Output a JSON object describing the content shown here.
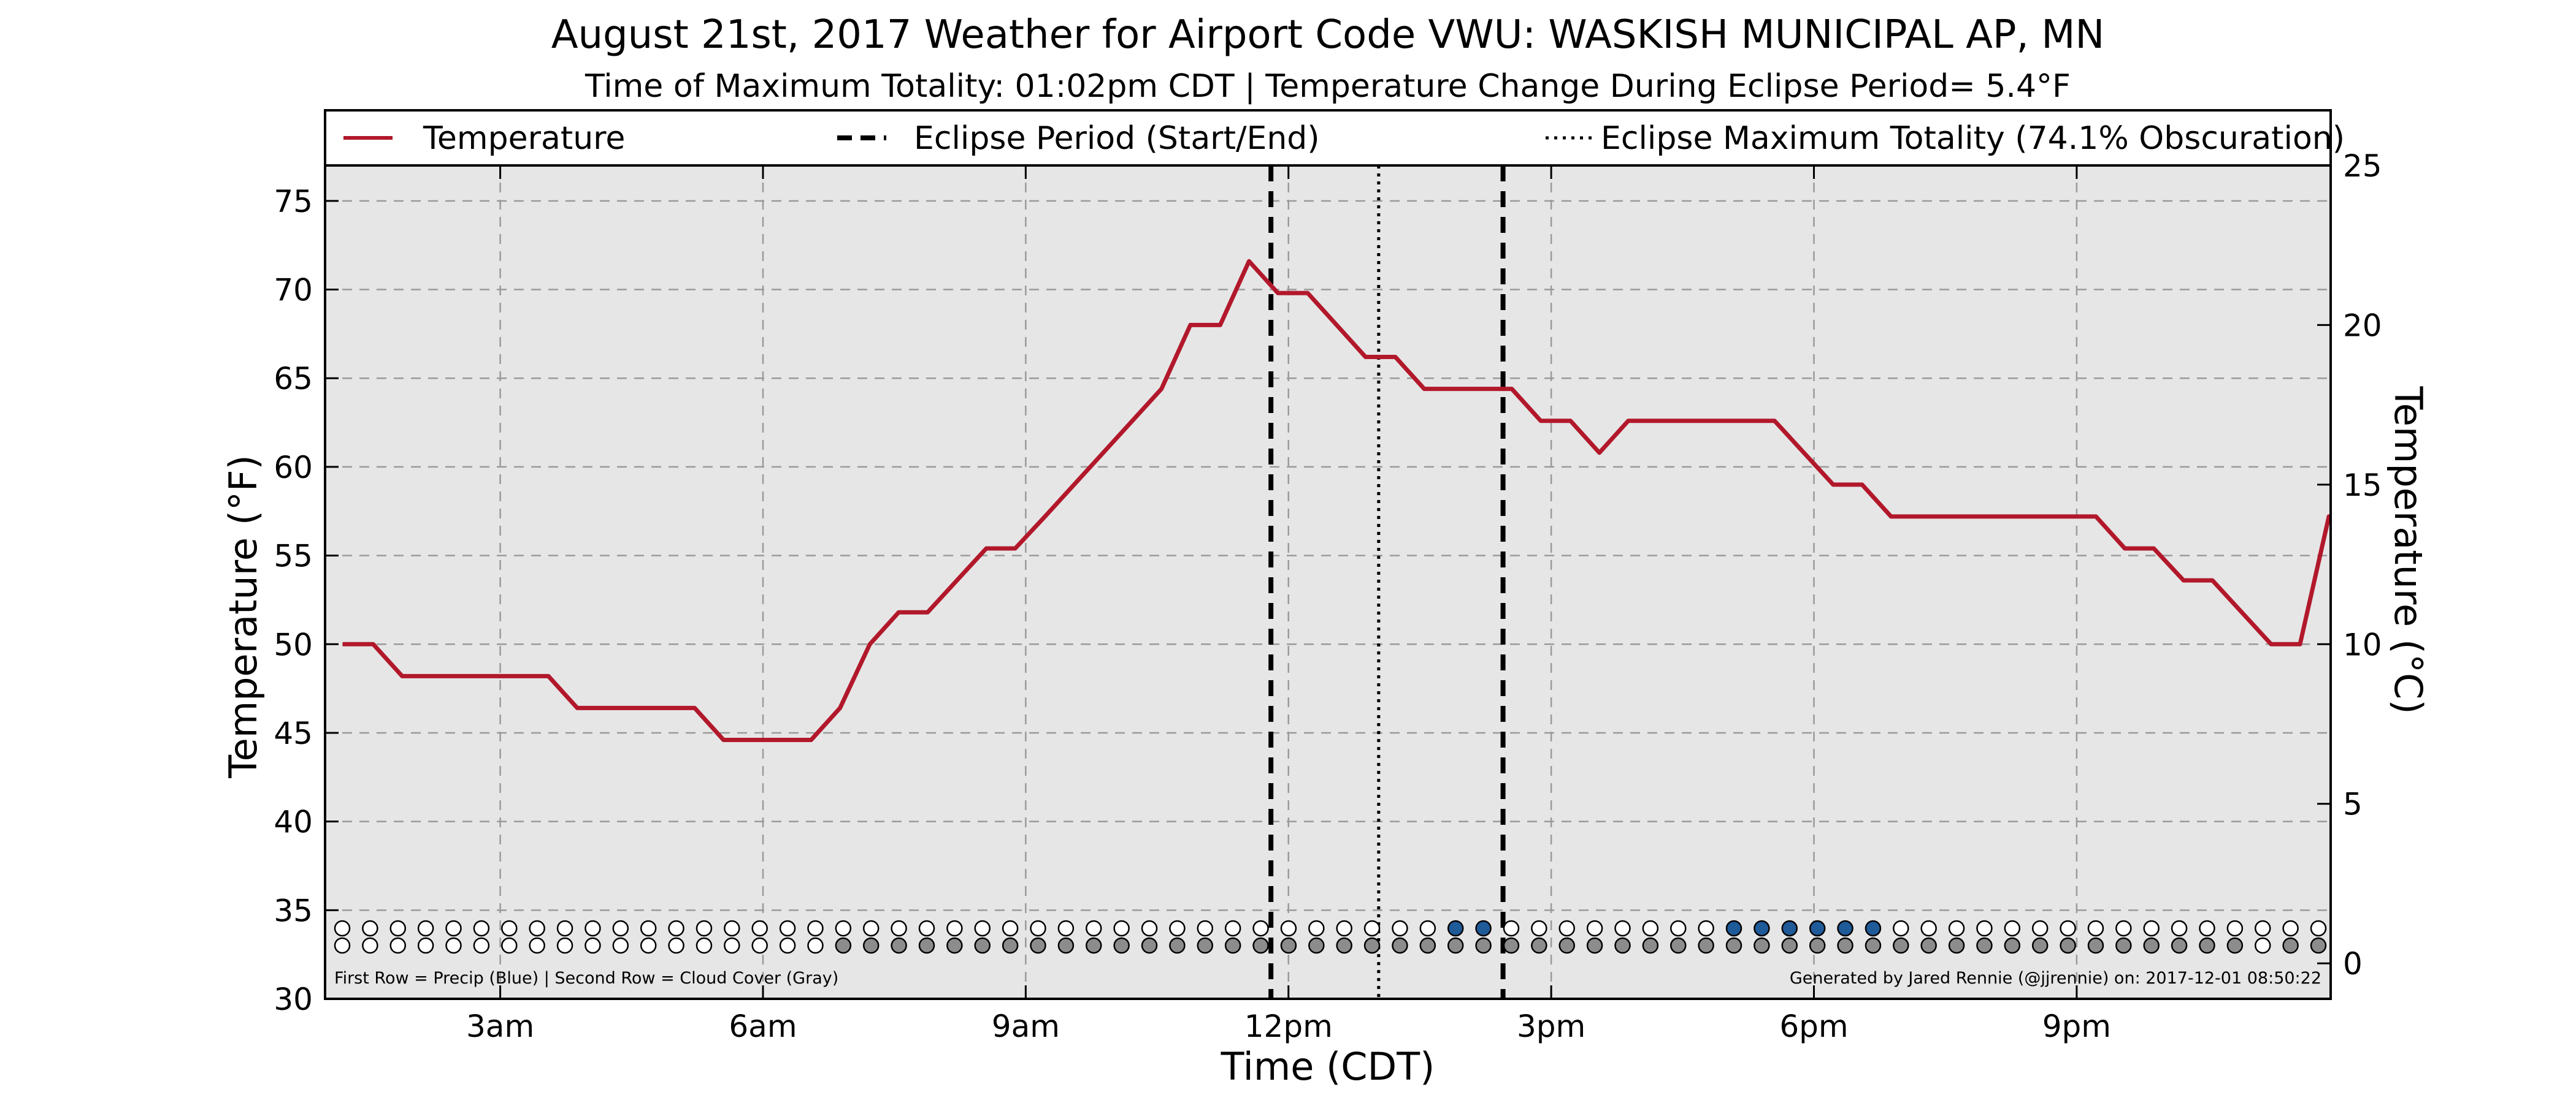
{
  "chart_data": {
    "type": "line",
    "title": "August 21st, 2017 Weather for Airport Code VWU: WASKISH MUNICIPAL AP, MN",
    "subtitle": "Time of Maximum Totality: 01:02pm CDT | Temperature Change During Eclipse Period= 5.4°F",
    "xlabel": "Time (CDT)",
    "ylabel": "Temperature (°F)",
    "ylabel_right": "Temperature (°C)",
    "xlim_hours": [
      1.0,
      23.9
    ],
    "ylim": [
      30,
      77
    ],
    "ylim_right": [
      -1.11,
      25.0
    ],
    "x_tick_labels": [
      {
        "hour": 3,
        "label": "3am"
      },
      {
        "hour": 6,
        "label": "6am"
      },
      {
        "hour": 9,
        "label": "9am"
      },
      {
        "hour": 12,
        "label": "12pm"
      },
      {
        "hour": 15,
        "label": "3pm"
      },
      {
        "hour": 18,
        "label": "6pm"
      },
      {
        "hour": 21,
        "label": "9pm"
      }
    ],
    "y_ticks": [
      30,
      35,
      40,
      45,
      50,
      55,
      60,
      65,
      70,
      75
    ],
    "y_ticks_right": [
      0,
      5,
      10,
      15,
      20,
      25
    ],
    "grid": true,
    "legend_position": "top",
    "legend": [
      {
        "label": "Temperature",
        "style": "solid",
        "color": "#b2182b"
      },
      {
        "label": "Eclipse Period (Start/End)",
        "style": "dashed",
        "color": "#000000"
      },
      {
        "label": "Eclipse Maximum Totality (74.1% Obscuration)",
        "style": "dotted",
        "color": "#000000"
      }
    ],
    "series": [
      {
        "name": "Temperature",
        "color": "#b2182b",
        "points": [
          [
            1.2,
            50.0
          ],
          [
            1.55,
            50.0
          ],
          [
            1.88,
            48.2
          ],
          [
            3.55,
            48.2
          ],
          [
            3.88,
            46.4
          ],
          [
            5.22,
            46.4
          ],
          [
            5.55,
            44.6
          ],
          [
            6.55,
            44.6
          ],
          [
            6.88,
            46.4
          ],
          [
            7.22,
            50.0
          ],
          [
            7.55,
            51.8
          ],
          [
            7.88,
            51.8
          ],
          [
            8.55,
            55.4
          ],
          [
            8.88,
            55.4
          ],
          [
            9.22,
            57.2
          ],
          [
            10.55,
            64.4
          ],
          [
            10.88,
            68.0
          ],
          [
            11.22,
            68.0
          ],
          [
            11.55,
            71.6
          ],
          [
            11.88,
            69.8
          ],
          [
            12.22,
            69.8
          ],
          [
            12.88,
            66.2
          ],
          [
            13.22,
            66.2
          ],
          [
            13.55,
            64.4
          ],
          [
            14.55,
            64.4
          ],
          [
            14.88,
            62.6
          ],
          [
            15.22,
            62.6
          ],
          [
            15.55,
            60.8
          ],
          [
            15.88,
            62.6
          ],
          [
            17.55,
            62.6
          ],
          [
            18.22,
            59.0
          ],
          [
            18.55,
            59.0
          ],
          [
            18.88,
            57.2
          ],
          [
            21.22,
            57.2
          ],
          [
            21.55,
            55.4
          ],
          [
            21.88,
            55.4
          ],
          [
            22.22,
            53.6
          ],
          [
            22.55,
            53.6
          ],
          [
            23.22,
            50.0
          ],
          [
            23.55,
            50.0
          ],
          [
            23.88,
            57.2
          ],
          [
            24.88,
            57.2
          ]
        ]
      }
    ],
    "eclipse_start_hour": 11.8,
    "eclipse_max_hour": 13.03,
    "eclipse_end_hour": 14.45,
    "precip_row_blue": [
      0,
      0,
      0,
      0,
      0,
      0,
      0,
      0,
      0,
      0,
      0,
      0,
      0,
      0,
      0,
      0,
      0,
      0,
      0,
      0,
      0,
      0,
      0,
      0,
      0,
      0,
      0,
      0,
      0,
      0,
      0,
      0,
      0,
      0,
      0,
      0,
      0,
      0,
      0,
      0,
      1,
      1,
      0,
      0,
      0,
      0,
      0,
      0,
      0,
      0,
      1,
      1,
      1,
      1,
      1,
      1,
      0,
      0,
      0,
      0,
      0,
      0,
      0,
      0,
      0,
      0,
      0,
      0,
      0,
      0,
      0,
      0
    ],
    "cloud_row_gray": [
      0,
      0,
      0,
      0,
      0,
      0,
      0,
      0,
      0,
      0,
      0,
      0,
      0,
      0,
      0,
      0,
      0,
      0,
      1,
      1,
      1,
      1,
      1,
      1,
      1,
      1,
      1,
      1,
      1,
      1,
      1,
      1,
      1,
      1,
      1,
      1,
      1,
      1,
      1,
      1,
      1,
      1,
      1,
      1,
      1,
      1,
      1,
      1,
      1,
      1,
      1,
      1,
      1,
      1,
      1,
      1,
      1,
      1,
      1,
      1,
      1,
      1,
      1,
      1,
      1,
      1,
      1,
      1,
      1,
      0,
      1,
      1
    ],
    "footnote_left": "First Row = Precip (Blue) | Second Row = Cloud Cover (Gray)",
    "footnote_right": "Generated by Jared Rennie (@jjrennie) on: 2017-12-01 08:50:22"
  }
}
